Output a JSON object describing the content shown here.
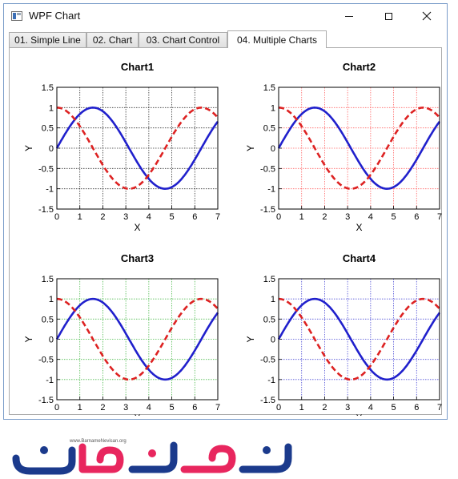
{
  "window": {
    "title": "WPF Chart"
  },
  "tabs": [
    {
      "label": "01. Simple Line",
      "active": false
    },
    {
      "label": "02. Chart",
      "active": false
    },
    {
      "label": "03. Chart Control",
      "active": false
    },
    {
      "label": "04. Multiple Charts",
      "active": true
    }
  ],
  "chart_data": [
    {
      "type": "line",
      "title": "Chart1",
      "xlabel": "X",
      "ylabel": "Y",
      "xlim": [
        0,
        7
      ],
      "ylim": [
        -1.5,
        1.5
      ],
      "xticks": [
        "0",
        "1",
        "2",
        "3",
        "4",
        "5",
        "6",
        "7"
      ],
      "yticks": [
        "1.5",
        "1",
        "0.5",
        "0",
        "-0.5",
        "-1",
        "-1.5"
      ],
      "grid": true,
      "grid_color": "#000000",
      "series": [
        {
          "function": "sin",
          "color": "#2020cc",
          "style": "solid",
          "x": [
            0,
            0.5,
            1,
            1.5,
            2,
            2.5,
            3,
            3.5,
            4,
            4.5,
            5,
            5.5,
            6,
            6.5,
            7
          ],
          "y": [
            0,
            0.48,
            0.84,
            1.0,
            0.91,
            0.6,
            0.14,
            -0.35,
            -0.76,
            -0.98,
            -0.96,
            -0.71,
            -0.28,
            0.22,
            0.66
          ]
        },
        {
          "function": "cos",
          "color": "#dd2222",
          "style": "dashed",
          "x": [
            0,
            0.5,
            1,
            1.5,
            2,
            2.5,
            3,
            3.5,
            4,
            4.5,
            5,
            5.5,
            6,
            6.5,
            7
          ],
          "y": [
            1.0,
            0.88,
            0.54,
            0.07,
            -0.42,
            -0.8,
            -0.99,
            -0.94,
            -0.65,
            -0.21,
            0.28,
            0.71,
            0.96,
            0.98,
            0.75
          ]
        }
      ]
    },
    {
      "type": "line",
      "title": "Chart2",
      "xlabel": "X",
      "ylabel": "Y",
      "xlim": [
        0,
        7
      ],
      "ylim": [
        -1.5,
        1.5
      ],
      "xticks": [
        "0",
        "1",
        "2",
        "3",
        "4",
        "5",
        "6",
        "7"
      ],
      "yticks": [
        "1.5",
        "1",
        "0.5",
        "0",
        "-0.5",
        "-1",
        "-1.5"
      ],
      "grid": true,
      "grid_color": "#ff4040",
      "series": [
        {
          "function": "sin",
          "color": "#2020cc",
          "style": "solid",
          "x": [
            0,
            0.5,
            1,
            1.5,
            2,
            2.5,
            3,
            3.5,
            4,
            4.5,
            5,
            5.5,
            6,
            6.5,
            7
          ],
          "y": [
            0,
            0.48,
            0.84,
            1.0,
            0.91,
            0.6,
            0.14,
            -0.35,
            -0.76,
            -0.98,
            -0.96,
            -0.71,
            -0.28,
            0.22,
            0.66
          ]
        },
        {
          "function": "cos",
          "color": "#dd2222",
          "style": "dashed",
          "x": [
            0,
            0.5,
            1,
            1.5,
            2,
            2.5,
            3,
            3.5,
            4,
            4.5,
            5,
            5.5,
            6,
            6.5,
            7
          ],
          "y": [
            1.0,
            0.88,
            0.54,
            0.07,
            -0.42,
            -0.8,
            -0.99,
            -0.94,
            -0.65,
            -0.21,
            0.28,
            0.71,
            0.96,
            0.98,
            0.75
          ]
        }
      ]
    },
    {
      "type": "line",
      "title": "Chart3",
      "xlabel": "X",
      "ylabel": "Y",
      "xlim": [
        0,
        7
      ],
      "ylim": [
        -1.5,
        1.5
      ],
      "xticks": [
        "0",
        "1",
        "2",
        "3",
        "4",
        "5",
        "6",
        "7"
      ],
      "yticks": [
        "1.5",
        "1",
        "0.5",
        "0",
        "-0.5",
        "-1",
        "-1.5"
      ],
      "grid": true,
      "grid_color": "#22aa22",
      "series": [
        {
          "function": "sin",
          "color": "#2020cc",
          "style": "solid",
          "x": [
            0,
            0.5,
            1,
            1.5,
            2,
            2.5,
            3,
            3.5,
            4,
            4.5,
            5,
            5.5,
            6,
            6.5,
            7
          ],
          "y": [
            0,
            0.48,
            0.84,
            1.0,
            0.91,
            0.6,
            0.14,
            -0.35,
            -0.76,
            -0.98,
            -0.96,
            -0.71,
            -0.28,
            0.22,
            0.66
          ]
        },
        {
          "function": "cos",
          "color": "#dd2222",
          "style": "dashed",
          "x": [
            0,
            0.5,
            1,
            1.5,
            2,
            2.5,
            3,
            3.5,
            4,
            4.5,
            5,
            5.5,
            6,
            6.5,
            7
          ],
          "y": [
            1.0,
            0.88,
            0.54,
            0.07,
            -0.42,
            -0.8,
            -0.99,
            -0.94,
            -0.65,
            -0.21,
            0.28,
            0.71,
            0.96,
            0.98,
            0.75
          ]
        }
      ]
    },
    {
      "type": "line",
      "title": "Chart4",
      "xlabel": "X",
      "ylabel": "Y",
      "xlim": [
        0,
        7
      ],
      "ylim": [
        -1.5,
        1.5
      ],
      "xticks": [
        "0",
        "1",
        "2",
        "3",
        "4",
        "5",
        "6",
        "7"
      ],
      "yticks": [
        "1.5",
        "1",
        "0.5",
        "0",
        "-0.5",
        "-1",
        "-1.5"
      ],
      "grid": true,
      "grid_color": "#2222cc",
      "series": [
        {
          "function": "sin",
          "color": "#2020cc",
          "style": "solid",
          "x": [
            0,
            0.5,
            1,
            1.5,
            2,
            2.5,
            3,
            3.5,
            4,
            4.5,
            5,
            5.5,
            6,
            6.5,
            7
          ],
          "y": [
            0,
            0.48,
            0.84,
            1.0,
            0.91,
            0.6,
            0.14,
            -0.35,
            -0.76,
            -0.98,
            -0.96,
            -0.71,
            -0.28,
            0.22,
            0.66
          ]
        },
        {
          "function": "cos",
          "color": "#dd2222",
          "style": "dashed",
          "x": [
            0,
            0.5,
            1,
            1.5,
            2,
            2.5,
            3,
            3.5,
            4,
            4.5,
            5,
            5.5,
            6,
            6.5,
            7
          ],
          "y": [
            1.0,
            0.88,
            0.54,
            0.07,
            -0.42,
            -0.8,
            -0.99,
            -0.94,
            -0.65,
            -0.21,
            0.28,
            0.71,
            0.96,
            0.98,
            0.75
          ]
        }
      ]
    }
  ],
  "logo": {
    "url": "www.BarnameNevisan.org",
    "text": "برنامه نویسان",
    "colors": [
      "#1b3a8c",
      "#e8265e"
    ]
  }
}
